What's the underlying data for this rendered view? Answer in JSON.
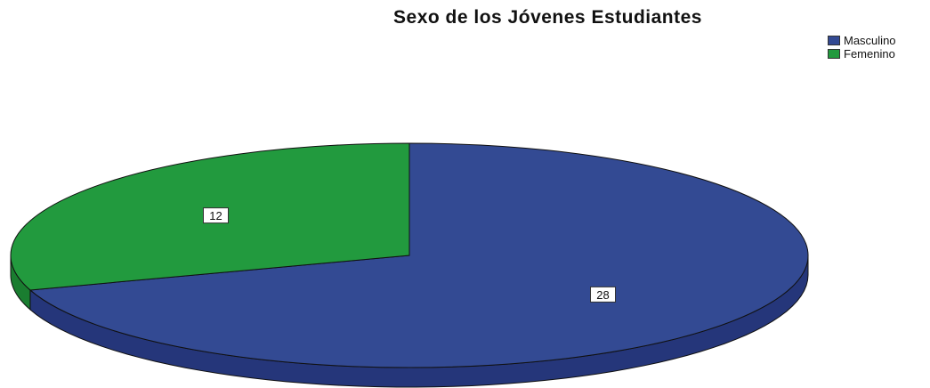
{
  "chart_data": {
    "type": "pie",
    "title": "Sexo de los Jóvenes Estudiantes",
    "categories": [
      "Masculino",
      "Femenino"
    ],
    "values": [
      28,
      12
    ],
    "colors": [
      "#334a93",
      "#229a3e"
    ],
    "side_colors": [
      "#25367a",
      "#1a7d30"
    ],
    "legend_position": "top-right",
    "three_d": true
  }
}
